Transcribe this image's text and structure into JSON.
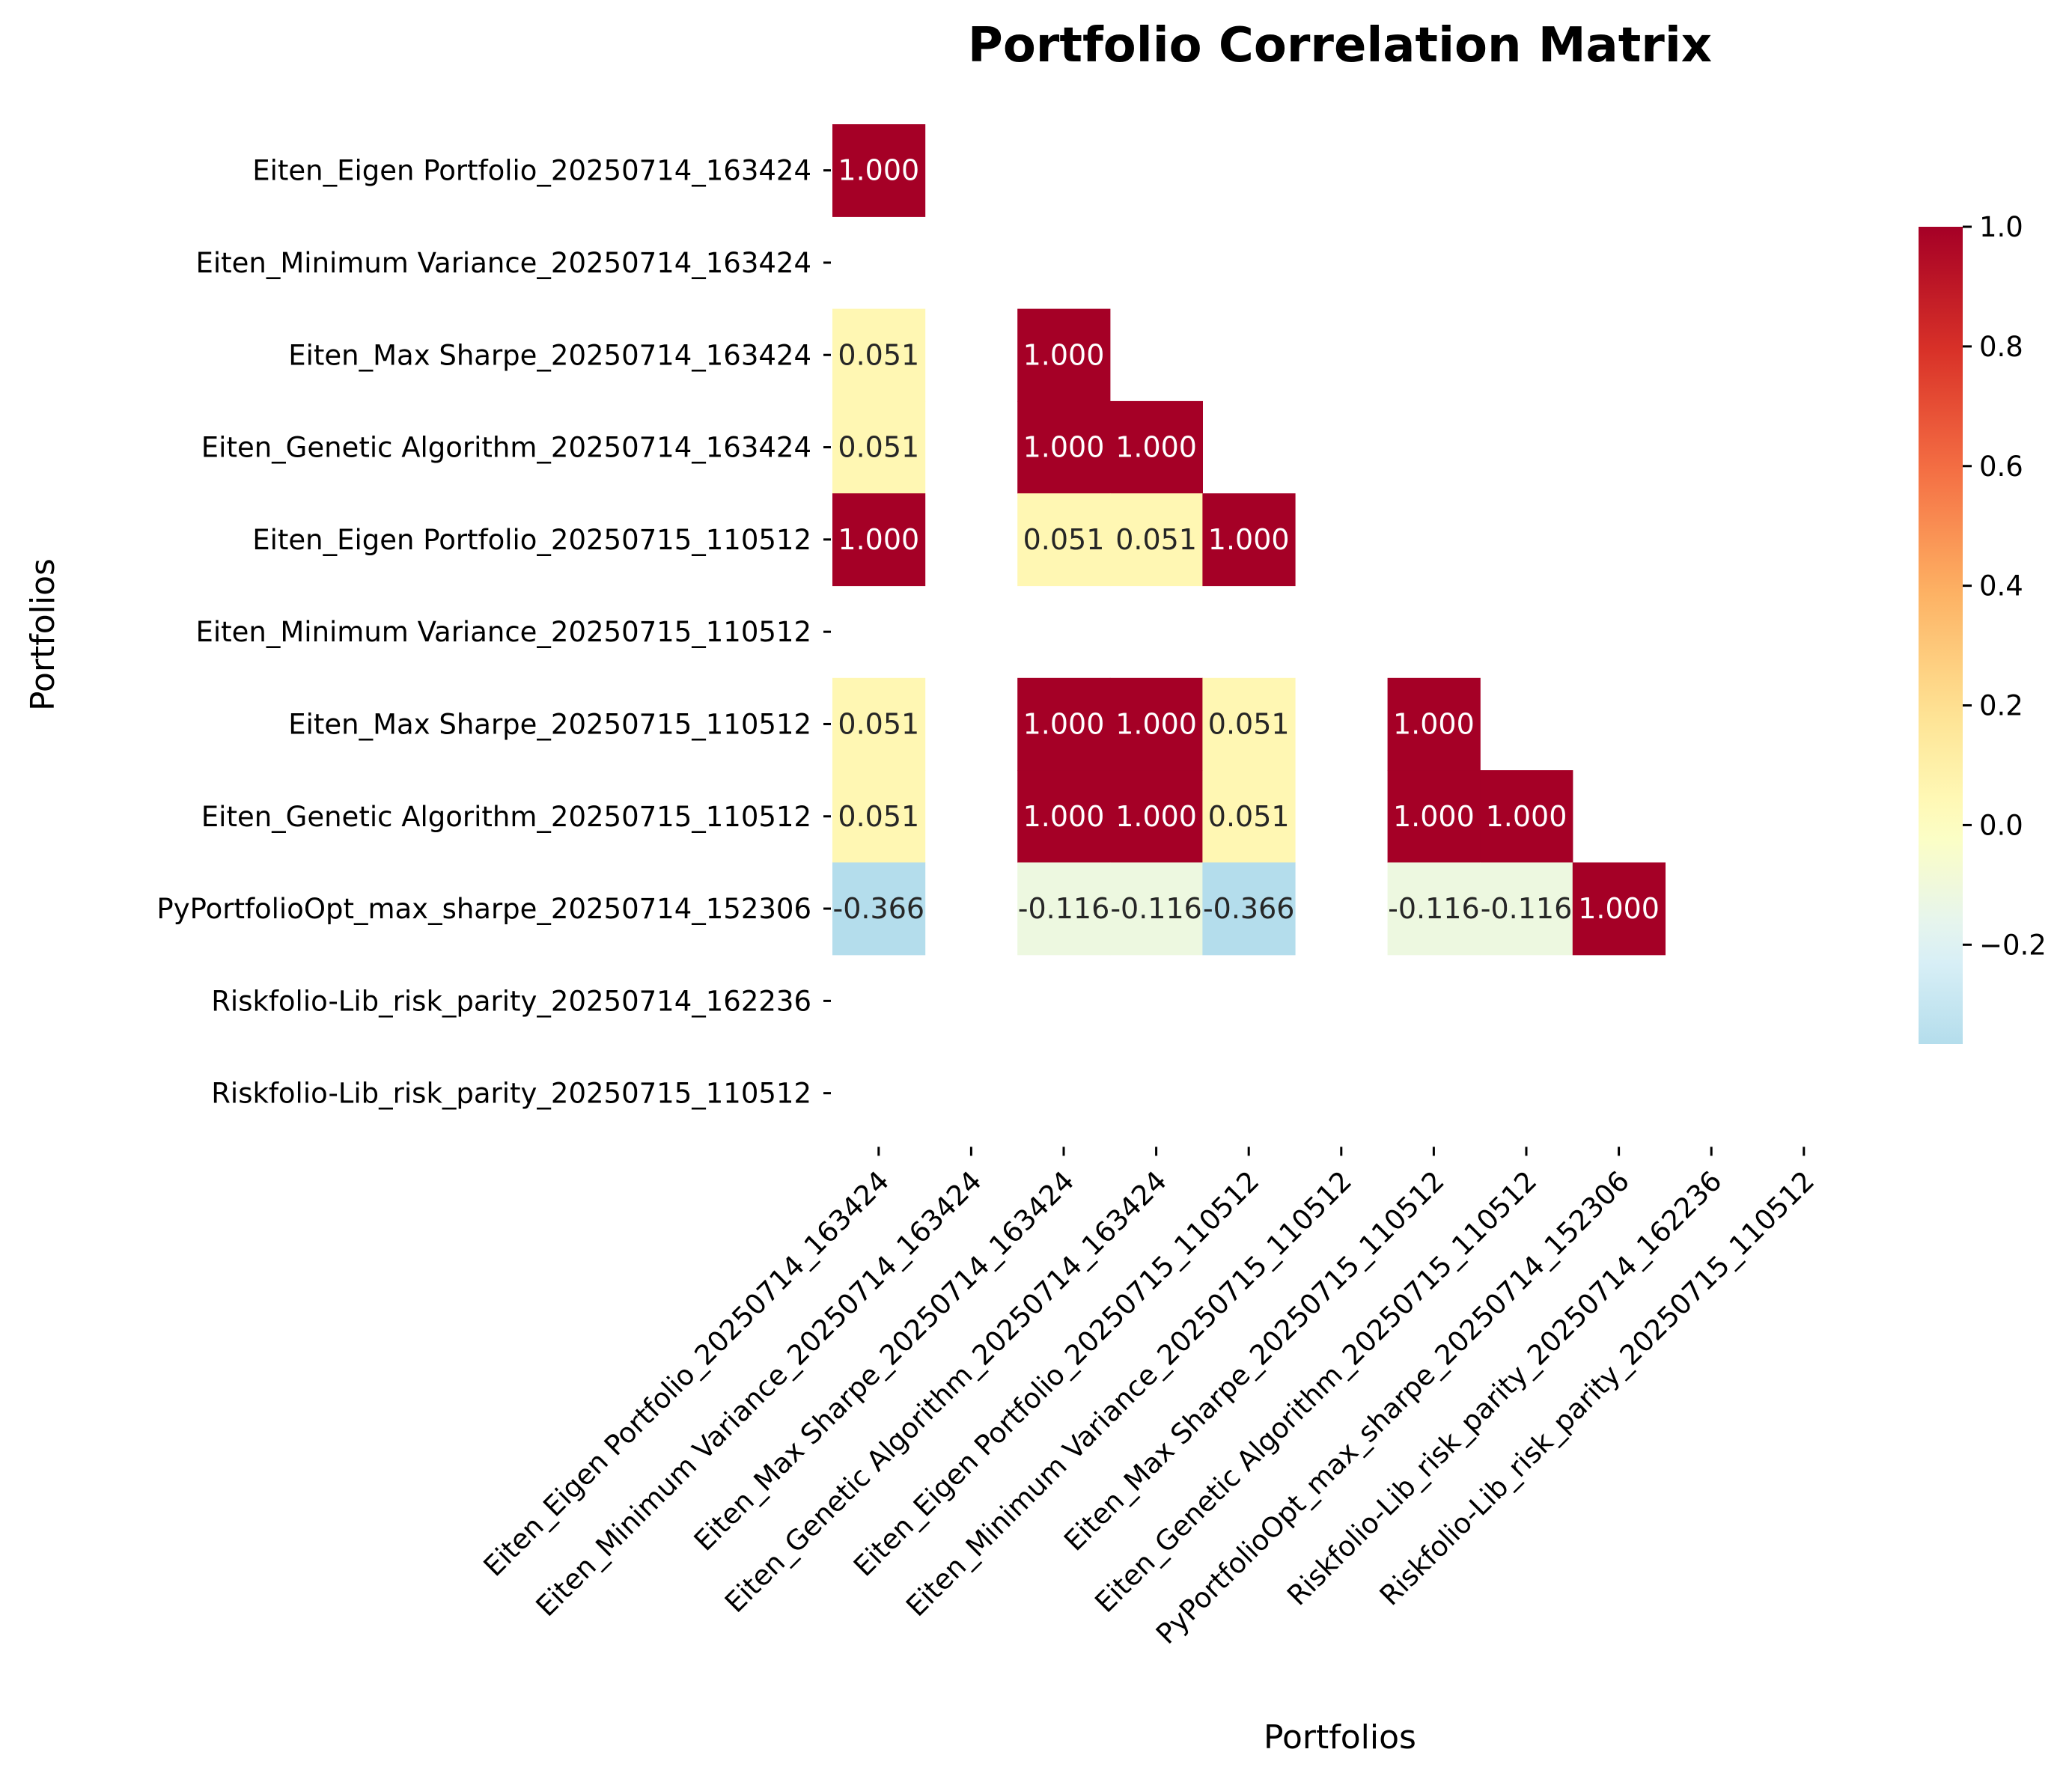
{
  "chart_data": {
    "type": "heatmap",
    "title": "Portfolio Correlation Matrix",
    "xlabel": "Portfolios",
    "ylabel": "Portfolios",
    "categories": [
      "Eiten_Eigen Portfolio_20250714_163424",
      "Eiten_Minimum Variance_20250714_163424",
      "Eiten_Max Sharpe_20250714_163424",
      "Eiten_Genetic Algorithm_20250714_163424",
      "Eiten_Eigen Portfolio_20250715_110512",
      "Eiten_Minimum Variance_20250715_110512",
      "Eiten_Max Sharpe_20250715_110512",
      "Eiten_Genetic Algorithm_20250715_110512",
      "PyPortfolioOpt_max_sharpe_20250714_152306",
      "Riskfolio-Lib_risk_parity_20250714_162236",
      "Riskfolio-Lib_risk_parity_20250715_110512"
    ],
    "values": [
      [
        1.0,
        null,
        null,
        null,
        null,
        null,
        null,
        null,
        null,
        null,
        null
      ],
      [
        null,
        null,
        null,
        null,
        null,
        null,
        null,
        null,
        null,
        null,
        null
      ],
      [
        0.051,
        null,
        1.0,
        null,
        null,
        null,
        null,
        null,
        null,
        null,
        null
      ],
      [
        0.051,
        null,
        1.0,
        1.0,
        null,
        null,
        null,
        null,
        null,
        null,
        null
      ],
      [
        1.0,
        null,
        0.051,
        0.051,
        1.0,
        null,
        null,
        null,
        null,
        null,
        null
      ],
      [
        null,
        null,
        null,
        null,
        null,
        null,
        null,
        null,
        null,
        null,
        null
      ],
      [
        0.051,
        null,
        1.0,
        1.0,
        0.051,
        null,
        1.0,
        null,
        null,
        null,
        null
      ],
      [
        0.051,
        null,
        1.0,
        1.0,
        0.051,
        null,
        1.0,
        1.0,
        null,
        null,
        null
      ],
      [
        -0.366,
        null,
        -0.116,
        -0.116,
        -0.366,
        null,
        -0.116,
        -0.116,
        1.0,
        null,
        null
      ],
      [
        null,
        null,
        null,
        null,
        null,
        null,
        null,
        null,
        null,
        null,
        null
      ],
      [
        null,
        null,
        null,
        null,
        null,
        null,
        null,
        null,
        null,
        null,
        null
      ]
    ],
    "value_format": "3 decimals",
    "colormap": "RdYlBu_r",
    "vmin": -0.366,
    "vmax": 1.0,
    "colorbar": {
      "ticks": [
        "1.0",
        "0.8",
        "0.6",
        "0.4",
        "0.2",
        "0.0",
        "−0.2"
      ],
      "tick_values": [
        1.0,
        0.8,
        0.6,
        0.4,
        0.2,
        0.0,
        -0.2
      ],
      "placement": "right"
    },
    "grid": false
  }
}
